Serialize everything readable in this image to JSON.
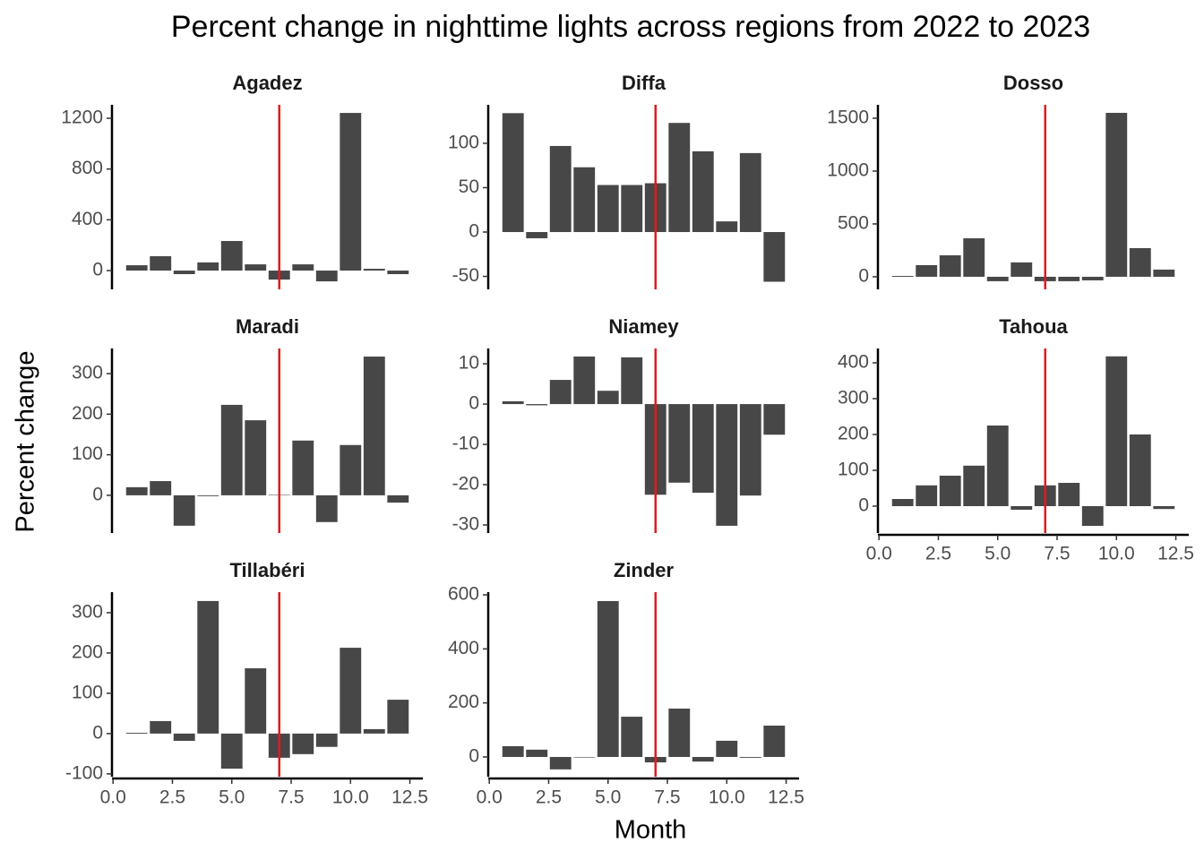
{
  "title": "Percent change in nighttime lights across regions from 2022 to 2023",
  "x_label": "Month",
  "y_label": "Percent change",
  "chart_data": [
    {
      "type": "bar",
      "title": "Agadez",
      "color": "#474747",
      "vline": 7,
      "vline_color": "#e31a1c",
      "x": [
        1,
        2,
        3,
        4,
        5,
        6,
        7,
        8,
        9,
        10,
        11,
        12
      ],
      "values": [
        42,
        113,
        -28,
        64,
        233,
        49,
        -71,
        49,
        -85,
        1242,
        14,
        -28
      ],
      "xlim": [
        -0.045,
        13.045
      ],
      "ylim": [
        -148,
        1306
      ],
      "yticks": [
        0,
        400,
        800,
        1200
      ]
    },
    {
      "type": "bar",
      "title": "Diffa",
      "color": "#474747",
      "vline": 7,
      "vline_color": "#e31a1c",
      "x": [
        1,
        2,
        3,
        4,
        5,
        6,
        7,
        8,
        9,
        10,
        11,
        12
      ],
      "values": [
        134,
        -7,
        97,
        73,
        53,
        53,
        55,
        123,
        91,
        12,
        89,
        -56
      ],
      "xlim": [
        -0.045,
        13.045
      ],
      "ylim": [
        -64.6,
        143.4
      ],
      "yticks": [
        -50,
        0,
        50,
        100
      ]
    },
    {
      "type": "bar",
      "title": "Dosso",
      "color": "#474747",
      "vline": 7,
      "vline_color": "#e31a1c",
      "x": [
        1,
        2,
        3,
        4,
        5,
        6,
        7,
        8,
        9,
        10,
        11,
        12
      ],
      "values": [
        8,
        110,
        203,
        364,
        -42,
        136,
        -42,
        -42,
        -34,
        1551,
        271,
        68
      ],
      "xlim": [
        -0.045,
        13.045
      ],
      "ylim": [
        -119,
        1627
      ],
      "yticks": [
        0,
        500,
        1000,
        1500
      ]
    },
    {
      "type": "bar",
      "title": "Maradi",
      "color": "#474747",
      "vline": 7,
      "vline_color": "#e31a1c",
      "x": [
        1,
        2,
        3,
        4,
        5,
        6,
        7,
        8,
        9,
        10,
        11,
        12
      ],
      "values": [
        20,
        35,
        -75,
        -2,
        223,
        185,
        1,
        135,
        -66,
        124,
        342,
        -18
      ],
      "xlim": [
        -0.045,
        13.045
      ],
      "ylim": [
        -93,
        362
      ],
      "yticks": [
        0,
        100,
        200,
        300
      ]
    },
    {
      "type": "bar",
      "title": "Niamey",
      "color": "#474747",
      "vline": 7,
      "vline_color": "#e31a1c",
      "x": [
        1,
        2,
        3,
        4,
        5,
        6,
        7,
        8,
        9,
        10,
        11,
        12
      ],
      "values": [
        0.7,
        -0.3,
        6,
        11.8,
        3.3,
        11.6,
        -22.5,
        -19.5,
        -22,
        -30.2,
        -22.7,
        -7.6
      ],
      "xlim": [
        -0.045,
        13.045
      ],
      "ylim": [
        -32,
        13.8
      ],
      "yticks": [
        -30,
        -20,
        -10,
        0,
        10
      ]
    },
    {
      "type": "bar",
      "title": "Tahoua",
      "color": "#474747",
      "vline": 7,
      "vline_color": "#e31a1c",
      "x": [
        1,
        2,
        3,
        4,
        5,
        6,
        7,
        8,
        9,
        10,
        11,
        12
      ],
      "values": [
        20,
        58,
        85,
        113,
        225,
        -10,
        58,
        65,
        -55,
        418,
        200,
        -8
      ],
      "xlim": [
        -0.045,
        13.045
      ],
      "ylim": [
        -75,
        440
      ],
      "yticks": [
        0,
        100,
        200,
        300,
        400
      ],
      "xticks": [
        {
          "value": 0,
          "label": "0.0"
        },
        2.5,
        {
          "value": 5,
          "label": "5.0"
        },
        7.5,
        {
          "value": 10,
          "label": "10.0"
        },
        12.5
      ]
    },
    {
      "type": "bar",
      "title": "Tillabéri",
      "color": "#474747",
      "vline": 7,
      "vline_color": "#e31a1c",
      "x": [
        1,
        2,
        3,
        4,
        5,
        6,
        7,
        8,
        9,
        10,
        11,
        12
      ],
      "values": [
        2,
        31,
        -18,
        329,
        -87,
        162,
        -60,
        -51,
        -33,
        213,
        11,
        84
      ],
      "xlim": [
        -0.045,
        13.045
      ],
      "ylim": [
        -107,
        351
      ],
      "yticks": [
        -100,
        0,
        100,
        200,
        300
      ],
      "xticks": [
        {
          "value": 0,
          "label": "0.0"
        },
        2.5,
        {
          "value": 5,
          "label": "5.0"
        },
        7.5,
        {
          "value": 10,
          "label": "10.0"
        },
        12.5
      ]
    },
    {
      "type": "bar",
      "title": "Zinder",
      "color": "#474747",
      "vline": 7,
      "vline_color": "#e31a1c",
      "x": [
        1,
        2,
        3,
        4,
        5,
        6,
        7,
        8,
        9,
        10,
        11,
        12
      ],
      "values": [
        40,
        27,
        -46,
        -2,
        577,
        149,
        -20,
        179,
        -17,
        60,
        -3,
        116
      ],
      "xlim": [
        -0.045,
        13.045
      ],
      "ylim": [
        -73,
        610
      ],
      "yticks": [
        0,
        200,
        400,
        600
      ],
      "xticks": [
        {
          "value": 0,
          "label": "0.0"
        },
        2.5,
        {
          "value": 5,
          "label": "5.0"
        },
        7.5,
        {
          "value": 10,
          "label": "10.0"
        },
        12.5
      ]
    }
  ]
}
